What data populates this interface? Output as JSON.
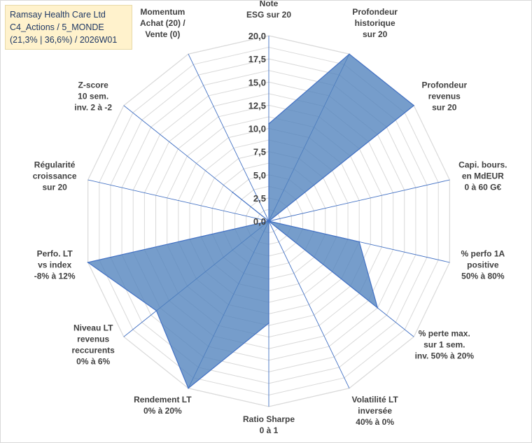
{
  "info": {
    "line1": "Ramsay Health Care Ltd",
    "line2": "C4_Actions / 5_MONDE",
    "line3": "(21,3% | 36,6%) / 2026W01"
  },
  "chart_data": {
    "type": "radar",
    "rmin": 0,
    "rmax": 20,
    "ticks": [
      "0,0",
      "2,5",
      "5,0",
      "7,5",
      "10,0",
      "12,5",
      "15,0",
      "17,5",
      "20,0"
    ],
    "grid": true,
    "colors": {
      "fill": "#4f81bd",
      "line": "#4472c4",
      "grid": "#d9d9d9",
      "spoke": "#4472c4"
    },
    "axes": [
      {
        "label": [
          "Note",
          "ESG sur 20"
        ]
      },
      {
        "label": [
          "Profondeur",
          "historique",
          "sur 20"
        ]
      },
      {
        "label": [
          "Profondeur",
          "revenus",
          "sur 20"
        ]
      },
      {
        "label": [
          "Capi. bours.",
          "en MdEUR",
          "0 à 60 G€"
        ]
      },
      {
        "label": [
          "% perfo 1A",
          "positive",
          "50% à 80%"
        ]
      },
      {
        "label": [
          "% perte max.",
          "sur 1 sem.",
          "inv. 50% à 20%"
        ]
      },
      {
        "label": [
          "Volatilité LT",
          "inversée",
          "40% à 0%"
        ]
      },
      {
        "label": [
          "Ratio Sharpe",
          "0 à 1"
        ]
      },
      {
        "label": [
          "Rendement LT",
          "0% à 20%"
        ]
      },
      {
        "label": [
          "Niveau LT",
          "revenus",
          "reccurents",
          "0% à 6%"
        ]
      },
      {
        "label": [
          "Perfo. LT",
          "vs index",
          "-8% à 12%"
        ]
      },
      {
        "label": [
          "Régularité",
          "croissance",
          "sur 20"
        ]
      },
      {
        "label": [
          "Z-score",
          "10 sem.",
          "inv. 2 à -2"
        ]
      },
      {
        "label": [
          "Momentum",
          "Achat (20) /",
          "Vente (0)"
        ]
      }
    ],
    "series": [
      {
        "values": [
          10.5,
          20,
          20,
          0,
          10,
          15,
          0,
          11,
          20,
          15.5,
          20,
          0,
          5,
          0
        ]
      }
    ]
  }
}
